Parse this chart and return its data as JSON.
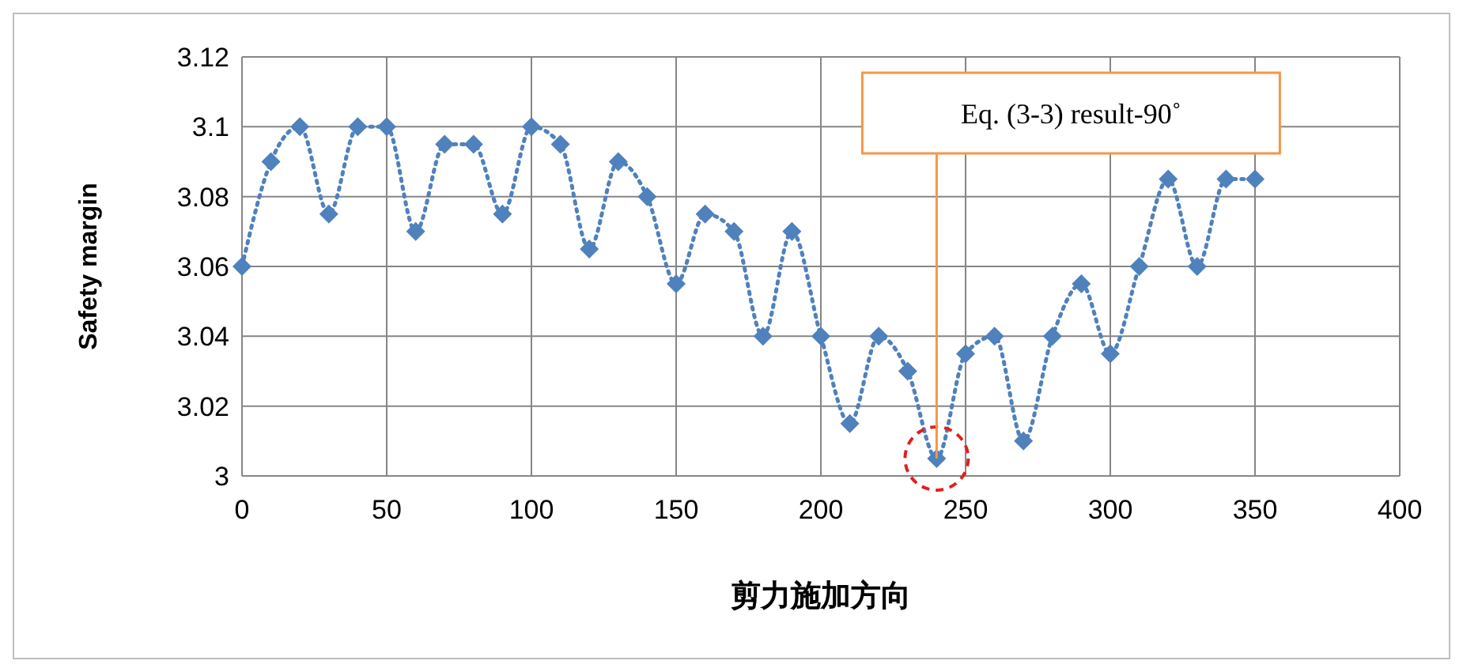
{
  "chart_data": {
    "type": "line",
    "xlabel": "剪力施加方向",
    "ylabel": "Safety margin",
    "x": [
      0,
      10,
      20,
      30,
      40,
      50,
      60,
      70,
      80,
      90,
      100,
      110,
      120,
      130,
      140,
      150,
      160,
      170,
      180,
      190,
      200,
      210,
      220,
      230,
      240,
      250,
      260,
      270,
      280,
      290,
      300,
      310,
      320,
      330,
      340,
      350
    ],
    "series": [
      {
        "color": "#4f81bd",
        "values": [
          3.06,
          3.09,
          3.1,
          3.075,
          3.1,
          3.1,
          3.07,
          3.095,
          3.095,
          3.075,
          3.1,
          3.095,
          3.065,
          3.09,
          3.08,
          3.055,
          3.075,
          3.07,
          3.04,
          3.07,
          3.04,
          3.015,
          3.04,
          3.03,
          3.005,
          3.035,
          3.04,
          3.01,
          3.04,
          3.055,
          3.035,
          3.06,
          3.085,
          3.06,
          3.085,
          3.085
        ]
      }
    ],
    "xlim": [
      0,
      400
    ],
    "xticks": [
      0,
      50,
      100,
      150,
      200,
      250,
      300,
      350,
      400
    ],
    "ylim": [
      3,
      3.12
    ],
    "yticks": [
      {
        "value": 3,
        "label": "3"
      },
      {
        "value": 3.02,
        "label": "3.02"
      },
      {
        "value": 3.04,
        "label": "3.04"
      },
      {
        "value": 3.06,
        "label": "3.06"
      },
      {
        "value": 3.08,
        "label": "3.08"
      },
      {
        "value": 3.1,
        "label": "3.1"
      },
      {
        "value": 3.12,
        "label": "3.12"
      }
    ],
    "grid": true,
    "marker": "diamond",
    "line_style": "dotted",
    "annotations": [
      {
        "text": "Eq. (3-3) result-90˚",
        "x": 240,
        "y": 3.005
      }
    ]
  }
}
